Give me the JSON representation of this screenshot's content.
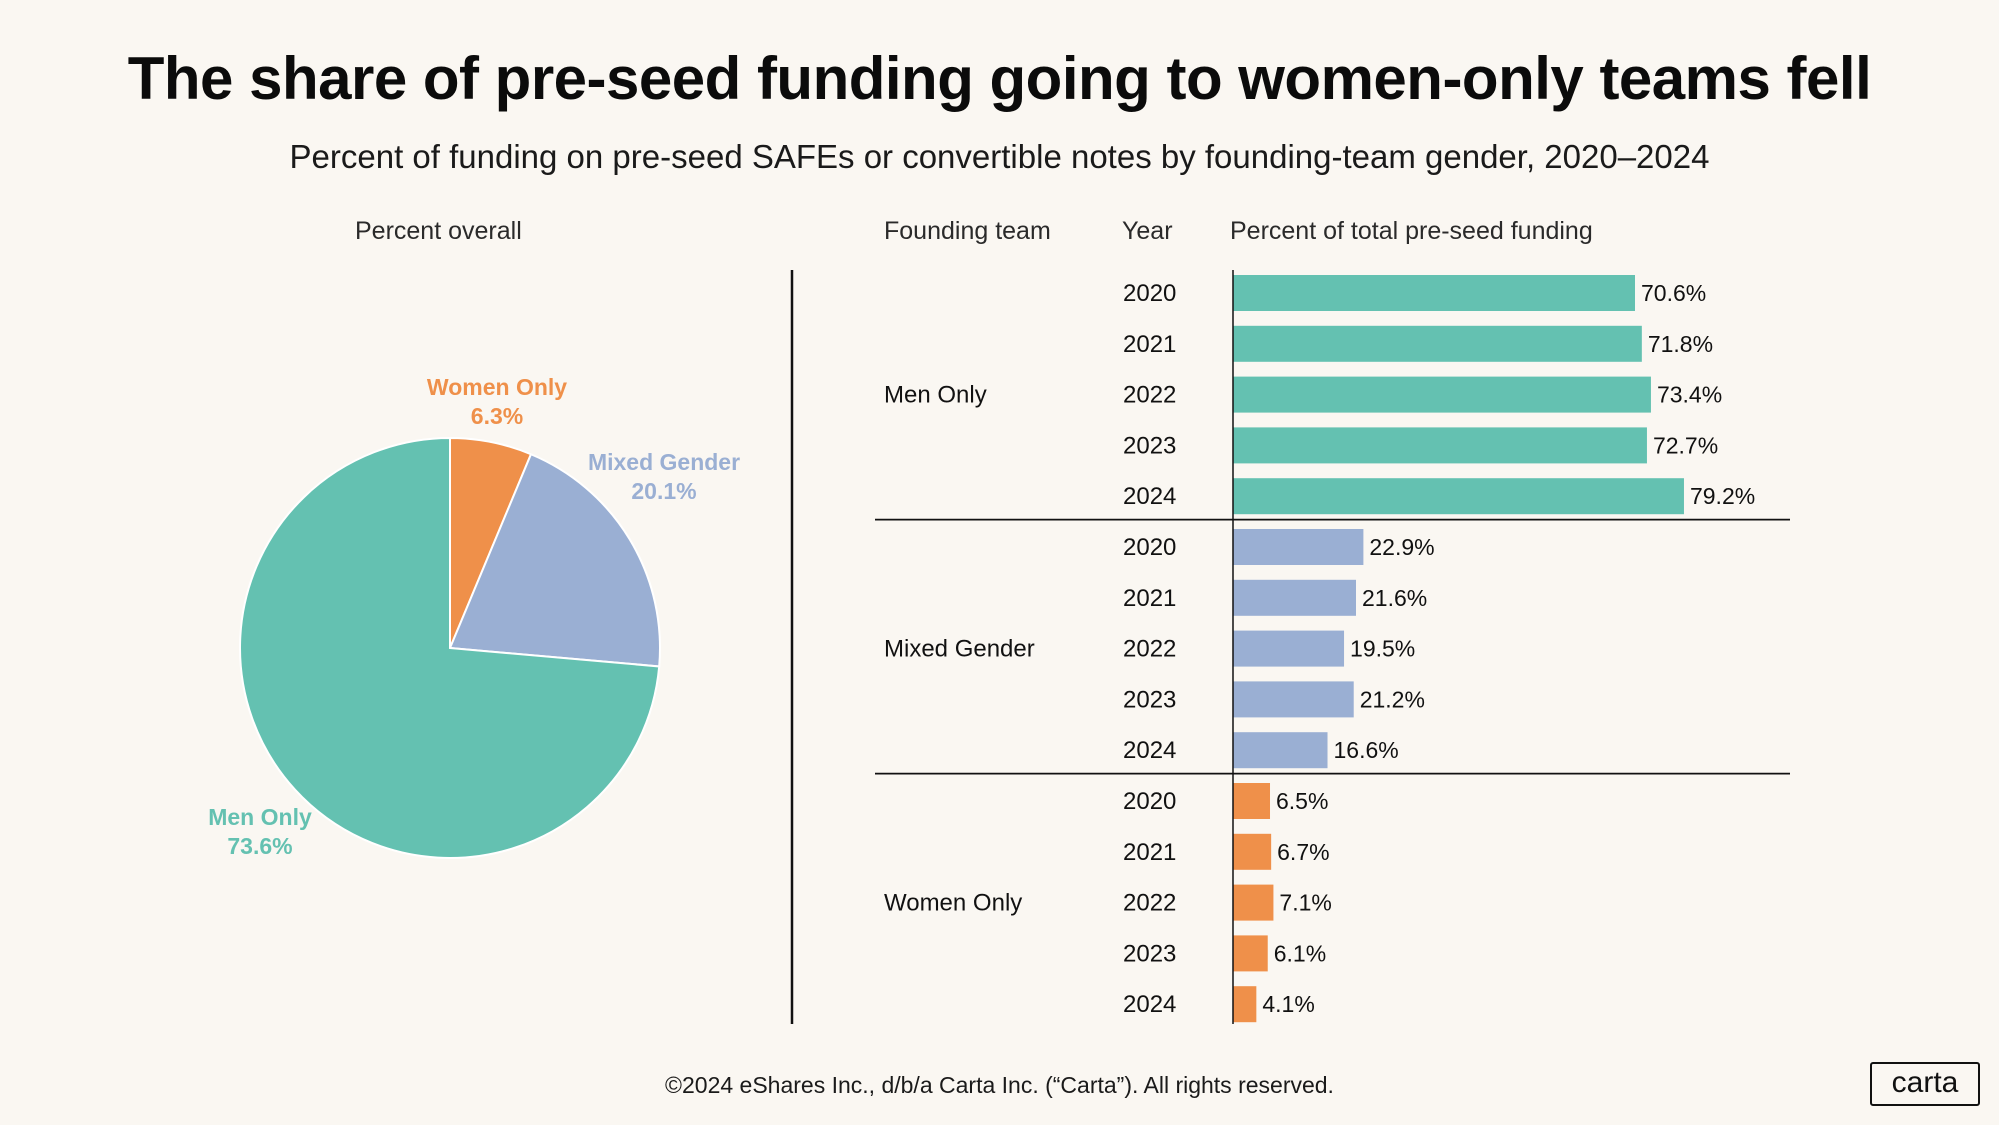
{
  "title": "The share of pre-seed funding going to women-only teams fell",
  "subtitle": "Percent of funding on pre-seed SAFEs or convertible notes by founding-team gender, 2020–2024",
  "pie_heading": "Percent overall",
  "bar_headings": {
    "team": "Founding team",
    "year": "Year",
    "percent": "Percent of total pre-seed funding"
  },
  "footer": "©2024 eShares Inc., d/b/a Carta Inc. (“Carta”). All rights reserved.",
  "logo_text": "carta",
  "colors": {
    "men": "#64c1b1",
    "mixed": "#9aafd3",
    "women": "#ef904a",
    "background": "#faf7f2"
  },
  "chart_data": [
    {
      "type": "pie",
      "title": "Percent overall",
      "slices": [
        {
          "name": "Women Only",
          "value": 6.3,
          "label": "6.3%",
          "color": "#ef904a"
        },
        {
          "name": "Mixed Gender",
          "value": 20.1,
          "label": "20.1%",
          "color": "#9aafd3"
        },
        {
          "name": "Men Only",
          "value": 73.6,
          "label": "73.6%",
          "color": "#64c1b1"
        }
      ]
    },
    {
      "type": "bar",
      "orientation": "horizontal",
      "title": "Percent of total pre-seed funding",
      "xlim": [
        0,
        100
      ],
      "groups": [
        {
          "name": "Men Only",
          "color": "#64c1b1",
          "years": [
            "2020",
            "2021",
            "2022",
            "2023",
            "2024"
          ],
          "values": [
            70.6,
            71.8,
            73.4,
            72.7,
            79.2
          ],
          "labels": [
            "70.6%",
            "71.8%",
            "73.4%",
            "72.7%",
            "79.2%"
          ]
        },
        {
          "name": "Mixed Gender",
          "color": "#9aafd3",
          "years": [
            "2020",
            "2021",
            "2022",
            "2023",
            "2024"
          ],
          "values": [
            22.9,
            21.6,
            19.5,
            21.2,
            16.6
          ],
          "labels": [
            "22.9%",
            "21.6%",
            "19.5%",
            "21.2%",
            "16.6%"
          ]
        },
        {
          "name": "Women Only",
          "color": "#ef904a",
          "years": [
            "2020",
            "2021",
            "2022",
            "2023",
            "2024"
          ],
          "values": [
            6.5,
            6.7,
            7.1,
            6.1,
            4.1
          ],
          "labels": [
            "6.5%",
            "6.7%",
            "7.1%",
            "6.1%",
            "4.1%"
          ]
        }
      ]
    }
  ]
}
